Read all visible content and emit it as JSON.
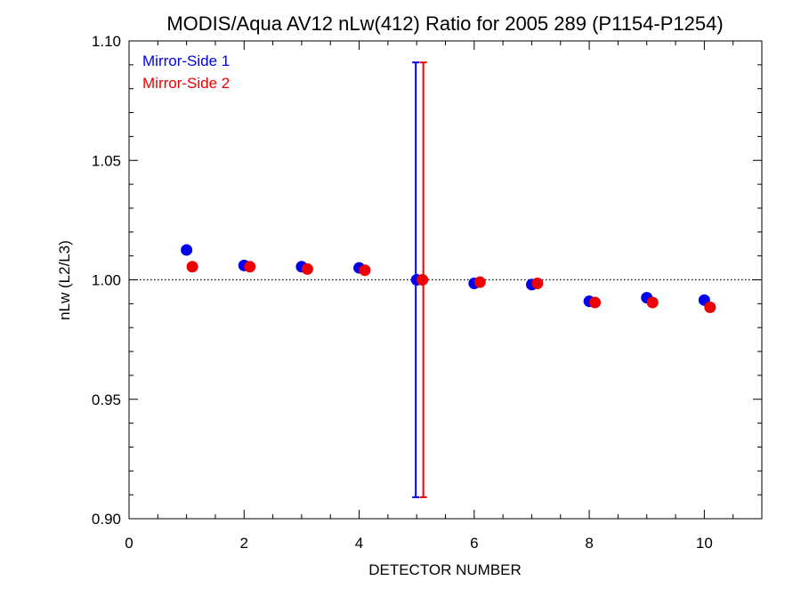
{
  "chart_data": {
    "type": "scatter",
    "title": "MODIS/Aqua AV12 nLw(412) Ratio for 2005 289 (P1154-P1254)",
    "xlabel": "DETECTOR NUMBER",
    "ylabel": "nLw (L2/L3)",
    "xlim": [
      0,
      11
    ],
    "ylim": [
      0.9,
      1.1
    ],
    "x_ticks": [
      0,
      2,
      4,
      6,
      8,
      10
    ],
    "x_tick_labels": [
      "0",
      "2",
      "4",
      "6",
      "8",
      "10"
    ],
    "y_ticks": [
      0.9,
      0.95,
      1.0,
      1.05,
      1.1
    ],
    "y_tick_labels": [
      "0.90",
      "0.95",
      "1.00",
      "1.05",
      "1.10"
    ],
    "reference_line": {
      "y": 1.0,
      "style": "dotted"
    },
    "legend_position": "top-left",
    "series": [
      {
        "name": "Mirror-Side 1",
        "color": "#0000ee",
        "x": [
          1,
          2,
          3,
          4,
          5,
          6,
          7,
          8,
          9,
          10
        ],
        "y": [
          1.0125,
          1.006,
          1.0055,
          1.005,
          1.0,
          0.9985,
          0.998,
          0.991,
          0.9925,
          0.9915
        ],
        "error_bars": [
          {
            "x": 5,
            "low": 0.909,
            "high": 1.091
          }
        ]
      },
      {
        "name": "Mirror-Side 2",
        "color": "#ee0000",
        "x": [
          1.1,
          2.1,
          3.1,
          4.1,
          5.1,
          6.1,
          7.1,
          8.1,
          9.1,
          10.1
        ],
        "y": [
          1.0055,
          1.0055,
          1.0045,
          1.004,
          1.0,
          0.999,
          0.9985,
          0.9905,
          0.9905,
          0.9885
        ],
        "error_bars": [
          {
            "x": 5.1,
            "low": 0.909,
            "high": 1.091
          }
        ]
      }
    ]
  }
}
